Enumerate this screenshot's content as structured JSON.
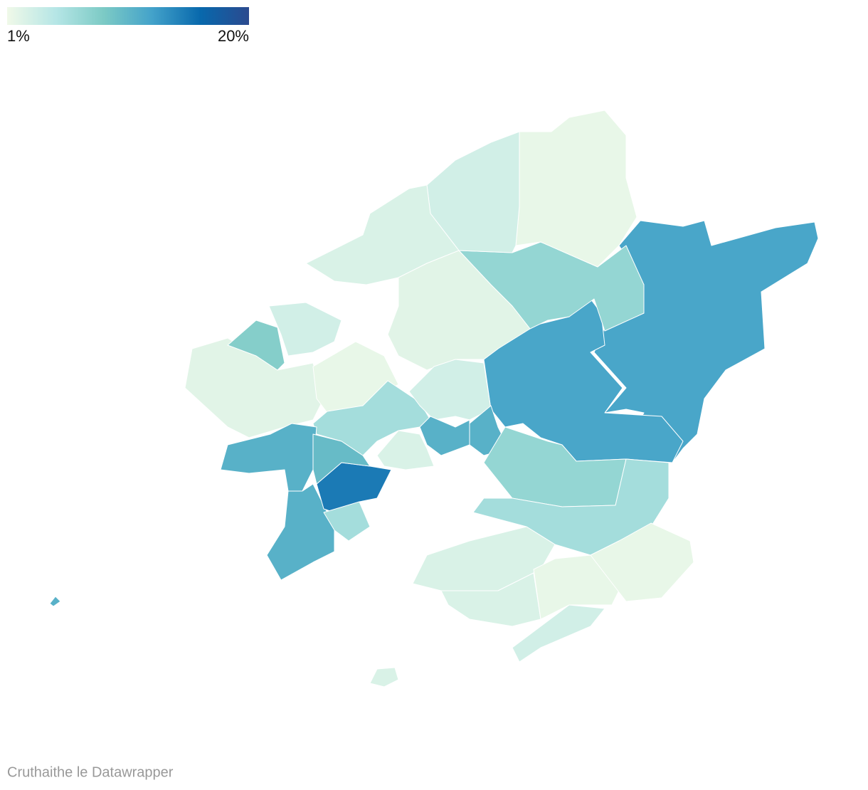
{
  "chart_data": {
    "type": "map",
    "colors": [
      "#f0f9e8",
      "#b6e6e6",
      "#7ccac5",
      "#43a2ca",
      "#0868ac",
      "#2b4a8f"
    ],
    "colorlim": [
      1,
      20
    ],
    "legend_ticks": [
      {
        "value": 1,
        "label": "1%"
      },
      {
        "value": 20,
        "label": "20%"
      }
    ],
    "values": [
      12,
      12,
      7,
      1.5,
      3,
      2.5,
      2,
      2,
      8,
      3,
      1.5,
      6,
      3,
      11,
      11,
      11,
      11,
      15,
      6,
      10,
      7,
      6,
      2.5,
      2.5,
      1.5,
      1.5,
      3,
      2.5,
      11,
      2.5
    ],
    "credit": "Cruthaithe le Datawrapper"
  }
}
